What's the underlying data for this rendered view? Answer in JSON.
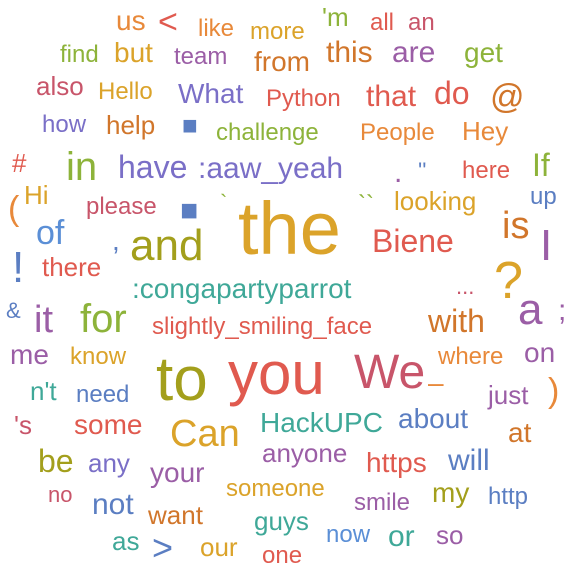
{
  "word_cloud": {
    "palette": {
      "orange": "#e8893a",
      "red": "#e05a4f",
      "purple": "#9b5ea6",
      "blue": "#5b7ec2",
      "green": "#8db33a",
      "gold": "#dba32a",
      "violet": "#7a6fc7",
      "teal": "#3fa898",
      "pink": "#d06090",
      "rose": "#c8556a",
      "olive": "#a39f1c",
      "darkorange": "#d1762b",
      "sky": "#5b8fd6",
      "brown": "#b8652a"
    },
    "words": [
      {
        "text": "us",
        "color": "#e8893a"
      },
      {
        "text": "<",
        "color": "#e05a4f"
      },
      {
        "text": "like",
        "color": "#e8893a"
      },
      {
        "text": "more",
        "color": "#dba32a"
      },
      {
        "text": "'m",
        "color": "#8db33a"
      },
      {
        "text": "all",
        "color": "#e05a4f"
      },
      {
        "text": "an",
        "color": "#c8556a"
      },
      {
        "text": "find",
        "color": "#8db33a"
      },
      {
        "text": "but",
        "color": "#dba32a"
      },
      {
        "text": "team",
        "color": "#9b5ea6"
      },
      {
        "text": "from",
        "color": "#d1762b"
      },
      {
        "text": "this",
        "color": "#d1762b"
      },
      {
        "text": "are",
        "color": "#9b5ea6"
      },
      {
        "text": "get",
        "color": "#8db33a"
      },
      {
        "text": "also",
        "color": "#c8556a"
      },
      {
        "text": "Hello",
        "color": "#dba32a"
      },
      {
        "text": "What",
        "color": "#7a6fc7"
      },
      {
        "text": "Python",
        "color": "#e05a4f"
      },
      {
        "text": "that",
        "color": "#e05a4f"
      },
      {
        "text": "do",
        "color": "#e05a4f"
      },
      {
        "text": "@",
        "color": "#d1762b"
      },
      {
        "text": "how",
        "color": "#7a6fc7"
      },
      {
        "text": "help",
        "color": "#d1762b"
      },
      {
        "text": "■",
        "color": "#5b7ec2"
      },
      {
        "text": "challenge",
        "color": "#8db33a"
      },
      {
        "text": "People",
        "color": "#e8893a"
      },
      {
        "text": "Hey",
        "color": "#e8893a"
      },
      {
        "text": "#",
        "color": "#e05a4f"
      },
      {
        "text": "in",
        "color": "#8db33a"
      },
      {
        "text": "have",
        "color": "#7a6fc7"
      },
      {
        "text": ":aaw_yeah",
        "color": "#7a6fc7"
      },
      {
        "text": ".",
        "color": "#9b5ea6"
      },
      {
        "text": "''",
        "color": "#5b7ec2"
      },
      {
        "text": "here",
        "color": "#e05a4f"
      },
      {
        "text": "If",
        "color": "#8db33a"
      },
      {
        "text": "Hi",
        "color": "#dba32a"
      },
      {
        "text": "(",
        "color": "#e8893a"
      },
      {
        "text": "please",
        "color": "#c8556a"
      },
      {
        "text": "■",
        "color": "#5b7ec2"
      },
      {
        "text": "`",
        "color": "#8db33a"
      },
      {
        "text": "the",
        "color": "#dba32a"
      },
      {
        "text": "``",
        "color": "#8db33a"
      },
      {
        "text": "looking",
        "color": "#dba32a"
      },
      {
        "text": "up",
        "color": "#5b7ec2"
      },
      {
        "text": "of",
        "color": "#5b8fd6"
      },
      {
        "text": ",",
        "color": "#5b7ec2"
      },
      {
        "text": "and",
        "color": "#a39f1c"
      },
      {
        "text": "Biene",
        "color": "#e05a4f"
      },
      {
        "text": "is",
        "color": "#d1762b"
      },
      {
        "text": "I",
        "color": "#9b5ea6"
      },
      {
        "text": "!",
        "color": "#5b7ec2"
      },
      {
        "text": "there",
        "color": "#e05a4f"
      },
      {
        "text": ":congapartyparrot",
        "color": "#3fa898"
      },
      {
        "text": "?",
        "color": "#dba32a"
      },
      {
        "text": "...",
        "color": "#c8556a"
      },
      {
        "text": "&",
        "color": "#5b7ec2"
      },
      {
        "text": "it",
        "color": "#9b5ea6"
      },
      {
        "text": "for",
        "color": "#8db33a"
      },
      {
        "text": "slightly_smiling_face",
        "color": "#e05a4f"
      },
      {
        "text": "with",
        "color": "#d1762b"
      },
      {
        "text": "a",
        "color": "#9b5ea6"
      },
      {
        "text": ";",
        "color": "#9b5ea6"
      },
      {
        "text": "me",
        "color": "#9b5ea6"
      },
      {
        "text": "know",
        "color": "#dba32a"
      },
      {
        "text": "to",
        "color": "#a39f1c"
      },
      {
        "text": "you",
        "color": "#e05a4f"
      },
      {
        "text": "We",
        "color": "#c8556a"
      },
      {
        "text": "where",
        "color": "#e8893a"
      },
      {
        "text": "on",
        "color": "#9b5ea6"
      },
      {
        "text": "n't",
        "color": "#3fa898"
      },
      {
        "text": "need",
        "color": "#5b7ec2"
      },
      {
        "text": "–",
        "color": "#e8893a"
      },
      {
        "text": "just",
        "color": "#9b5ea6"
      },
      {
        "text": ")",
        "color": "#e8893a"
      },
      {
        "text": "'s",
        "color": "#c8556a"
      },
      {
        "text": "some",
        "color": "#e05a4f"
      },
      {
        "text": "Can",
        "color": "#dba32a"
      },
      {
        "text": "HackUPC",
        "color": "#3fa898"
      },
      {
        "text": "about",
        "color": "#5b7ec2"
      },
      {
        "text": "at",
        "color": "#d1762b"
      },
      {
        "text": "be",
        "color": "#a39f1c"
      },
      {
        "text": "any",
        "color": "#7a6fc7"
      },
      {
        "text": "your",
        "color": "#9b5ea6"
      },
      {
        "text": "anyone",
        "color": "#9b5ea6"
      },
      {
        "text": "https",
        "color": "#e05a4f"
      },
      {
        "text": "will",
        "color": "#5b7ec2"
      },
      {
        "text": "no",
        "color": "#c8556a"
      },
      {
        "text": "not",
        "color": "#5b7ec2"
      },
      {
        "text": "want",
        "color": "#d1762b"
      },
      {
        "text": "someone",
        "color": "#dba32a"
      },
      {
        "text": "smile",
        "color": "#9b5ea6"
      },
      {
        "text": "my",
        "color": "#a39f1c"
      },
      {
        "text": "http",
        "color": "#5b7ec2"
      },
      {
        "text": "guys",
        "color": "#3fa898"
      },
      {
        "text": "as",
        "color": "#3fa898"
      },
      {
        "text": ">",
        "color": "#5b7ec2"
      },
      {
        "text": "our",
        "color": "#dba32a"
      },
      {
        "text": "one",
        "color": "#e05a4f"
      },
      {
        "text": "now",
        "color": "#5b8fd6"
      },
      {
        "text": "or",
        "color": "#3fa898"
      },
      {
        "text": "so",
        "color": "#9b5ea6"
      }
    ]
  }
}
